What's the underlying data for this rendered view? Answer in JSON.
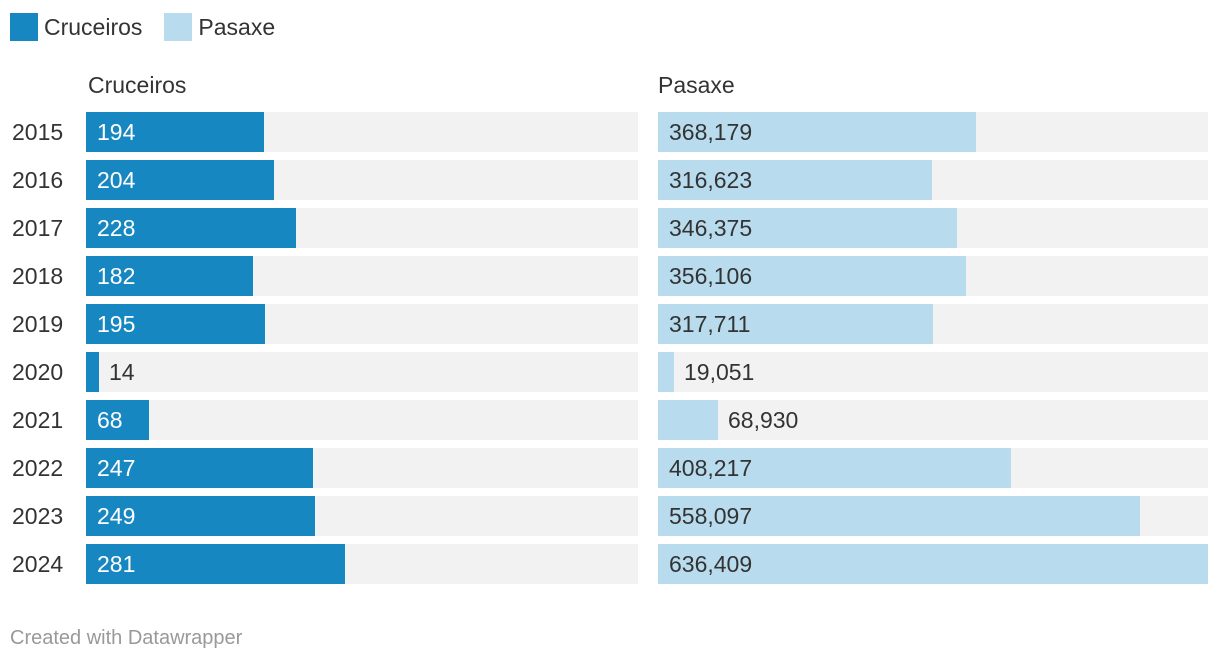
{
  "legend": [
    {
      "label": "Cruceiros",
      "color": "#1787c2"
    },
    {
      "label": "Pasaxe",
      "color": "#b8dcee"
    }
  ],
  "chart_data": {
    "type": "bar",
    "orientation": "horizontal",
    "categories": [
      "2015",
      "2016",
      "2017",
      "2018",
      "2019",
      "2020",
      "2021",
      "2022",
      "2023",
      "2024"
    ],
    "series": [
      {
        "name": "Cruceiros",
        "title": "Cruceiros",
        "color": "#1787c2",
        "label_color_inside": "#ffffff",
        "values": [
          194,
          204,
          228,
          182,
          195,
          14,
          68,
          247,
          249,
          281
        ],
        "labels": [
          "194",
          "204",
          "228",
          "182",
          "195",
          "14",
          "68",
          "247",
          "249",
          "281"
        ],
        "xlim": [
          0,
          600
        ]
      },
      {
        "name": "Pasaxe",
        "title": "Pasaxe",
        "color": "#b8dcee",
        "label_color_inside": "#333333",
        "values": [
          368179,
          316623,
          346375,
          356106,
          317711,
          19051,
          68930,
          408217,
          558097,
          636409
        ],
        "labels": [
          "368,179",
          "316,623",
          "346,375",
          "356,106",
          "317,711",
          "19,051",
          "68,930",
          "408,217",
          "558,097",
          "636,409"
        ],
        "xlim": [
          0,
          636409
        ]
      }
    ]
  },
  "footer": {
    "credit": "Created with Datawrapper"
  }
}
